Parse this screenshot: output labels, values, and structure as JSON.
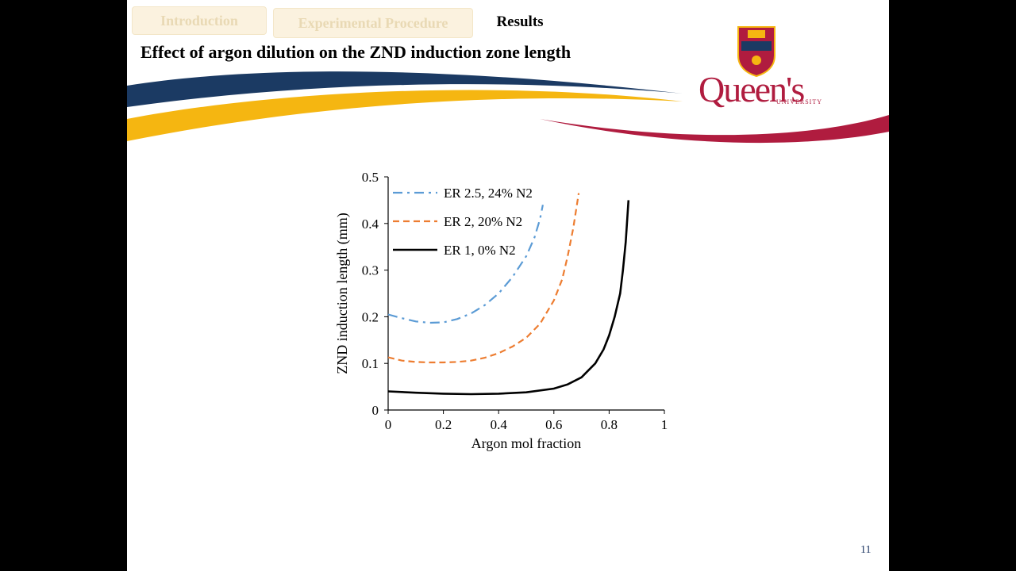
{
  "nav": {
    "tabs": [
      {
        "label": "Introduction",
        "active": false
      },
      {
        "label": "Experimental Procedure",
        "active": false
      },
      {
        "label": "Results",
        "active": true
      }
    ]
  },
  "slide_title": "Effect of argon dilution on the ZND induction zone length",
  "logo": {
    "wordmark": "Queen's",
    "subtitle": "UNIVERSITY"
  },
  "page_number": "11",
  "colors": {
    "navy": "#1b3a63",
    "gold": "#f5b611",
    "red": "#b01c3f"
  },
  "chart_data": {
    "type": "line",
    "xlabel": "Argon mol fraction",
    "ylabel": "ZND induction length (mm)",
    "xlim": [
      0,
      1
    ],
    "ylim": [
      0,
      0.5
    ],
    "xticks": [
      "0",
      "0.2",
      "0.4",
      "0.6",
      "0.8",
      "1"
    ],
    "yticks": [
      "0",
      "0.1",
      "0.2",
      "0.3",
      "0.4",
      "0.5"
    ],
    "grid": false,
    "legend_position": "top-left",
    "series": [
      {
        "name": "ER 2.5, 24% N2",
        "color": "#5b9bd5",
        "dash": "dash-dot",
        "x": [
          0,
          0.05,
          0.1,
          0.15,
          0.2,
          0.25,
          0.3,
          0.35,
          0.4,
          0.45,
          0.5,
          0.53,
          0.55,
          0.56
        ],
        "y": [
          0.205,
          0.197,
          0.19,
          0.187,
          0.188,
          0.195,
          0.207,
          0.225,
          0.25,
          0.285,
          0.33,
          0.37,
          0.41,
          0.44
        ]
      },
      {
        "name": "ER 2, 20% N2",
        "color": "#ed7d31",
        "dash": "dashed",
        "x": [
          0,
          0.05,
          0.1,
          0.15,
          0.2,
          0.25,
          0.3,
          0.35,
          0.4,
          0.45,
          0.5,
          0.55,
          0.6,
          0.63,
          0.65,
          0.67,
          0.69
        ],
        "y": [
          0.113,
          0.106,
          0.103,
          0.102,
          0.102,
          0.103,
          0.106,
          0.112,
          0.122,
          0.136,
          0.155,
          0.185,
          0.235,
          0.28,
          0.33,
          0.39,
          0.465
        ]
      },
      {
        "name": "ER 1, 0% N2",
        "color": "#000000",
        "dash": "solid",
        "x": [
          0,
          0.1,
          0.2,
          0.3,
          0.4,
          0.5,
          0.6,
          0.65,
          0.7,
          0.75,
          0.78,
          0.8,
          0.82,
          0.84,
          0.85,
          0.86,
          0.87
        ],
        "y": [
          0.04,
          0.037,
          0.035,
          0.034,
          0.035,
          0.038,
          0.046,
          0.055,
          0.07,
          0.1,
          0.13,
          0.16,
          0.2,
          0.25,
          0.3,
          0.36,
          0.45
        ]
      }
    ]
  }
}
